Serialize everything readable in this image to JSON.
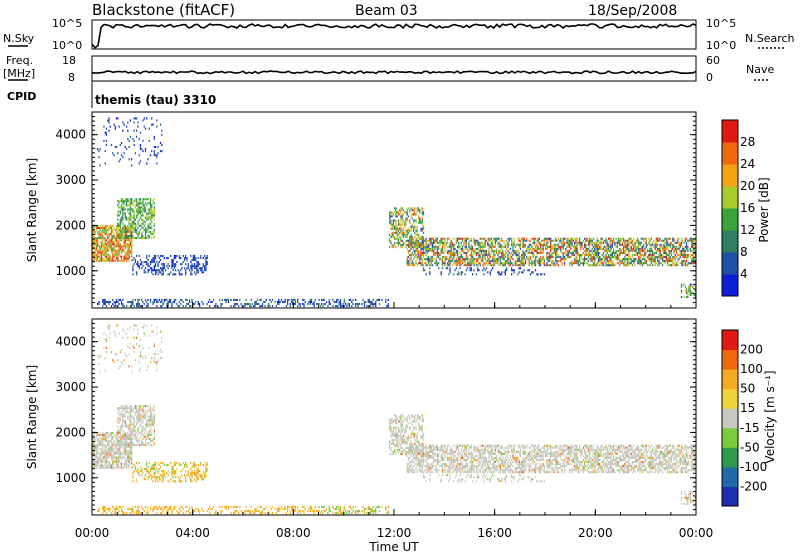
{
  "header": {
    "site": "Blackstone (fitACF)",
    "beam": "Beam 03",
    "date": "18/Sep/2008"
  },
  "left_labels": {
    "nsky": "N.Sky",
    "freq": "Freq.",
    "freq_unit": "[MHz]",
    "cpid": "CPID",
    "nsky_top": "10^5",
    "nsky_bottom": "10^0",
    "freq_top": "18",
    "freq_bottom": "8"
  },
  "right_labels": {
    "nsearch": "N.Search",
    "nave": "Nave",
    "nsearch_top": "10^5",
    "nsearch_bottom": "10^0",
    "nave_top": "60",
    "nave_bottom": "0"
  },
  "cpid_text": "themis (tau) 3310",
  "colors": {
    "power": [
      "#0a1fd6",
      "#1f4fa8",
      "#2e7f62",
      "#3aa53a",
      "#a8cc2a",
      "#f2a312",
      "#ee6a10",
      "#e01a10"
    ],
    "velocity": [
      "#e01a10",
      "#ee6a10",
      "#f6ac20",
      "#f0d23a",
      "#c8c8c0",
      "#7acc3a",
      "#2e9a4a",
      "#1f6aa8",
      "#1c2fb0"
    ],
    "ground": "#c8c8c0"
  },
  "chart_data": [
    {
      "type": "heatmap",
      "title": "Power",
      "ylabel": "Slant Range [km]",
      "xlabel": "Time UT",
      "x_range": [
        "00:00",
        "24:00"
      ],
      "ylim": [
        180,
        4500
      ],
      "yticks": [
        "1000",
        "2000",
        "3000",
        "4000"
      ],
      "xticks": [
        "00:00",
        "04:00",
        "08:00",
        "12:00",
        "16:00",
        "20:00",
        "00:00"
      ],
      "colorbar": {
        "label": "Power [dB]",
        "ticks": [
          "4",
          "8",
          "12",
          "16",
          "20",
          "24",
          "28"
        ],
        "range": [
          0,
          30
        ]
      }
    },
    {
      "type": "heatmap",
      "title": "Velocity",
      "ylabel": "Slant Range [km]",
      "xlabel": "Time UT",
      "x_range": [
        "00:00",
        "24:00"
      ],
      "ylim": [
        180,
        4500
      ],
      "yticks": [
        "1000",
        "2000",
        "3000",
        "4000"
      ],
      "xticks": [
        "00:00",
        "04:00",
        "08:00",
        "12:00",
        "16:00",
        "20:00",
        "00:00"
      ],
      "colorbar": {
        "label": "Velocity [m s⁻¹]",
        "ticks": [
          "200",
          "100",
          "50",
          "15",
          "-15",
          "-50",
          "-100",
          "-200"
        ]
      }
    }
  ]
}
